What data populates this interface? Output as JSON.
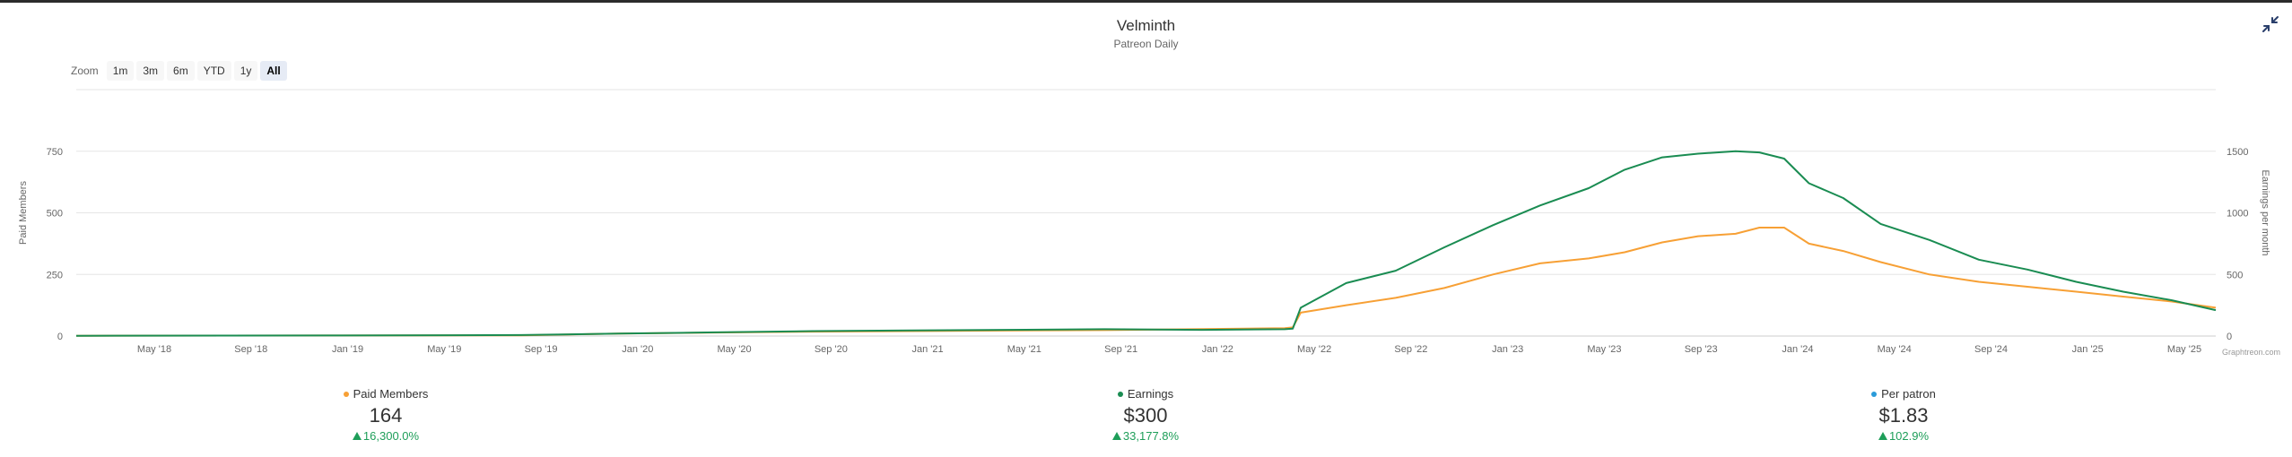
{
  "header": {
    "title": "Velminth",
    "subtitle": "Patreon Daily"
  },
  "zoom": {
    "label": "Zoom",
    "buttons": [
      "1m",
      "3m",
      "6m",
      "YTD",
      "1y",
      "All"
    ],
    "active": "All"
  },
  "icons": {
    "collapse": "collapse-arrows-icon"
  },
  "stats": [
    {
      "label": "Paid Members",
      "value": "164",
      "change": "16,300.0%",
      "color": "#f7a035"
    },
    {
      "label": "Earnings",
      "value": "$300",
      "change": "33,177.8%",
      "color": "#1a8c52"
    },
    {
      "label": "Per patron",
      "value": "$1.83",
      "change": "102.9%",
      "color": "#2b9bd9"
    }
  ],
  "chart_data": {
    "type": "line",
    "credit": "Graphtreon.com",
    "x_ticks": [
      "May '18",
      "Sep '18",
      "Jan '19",
      "May '19",
      "Sep '19",
      "Jan '20",
      "May '20",
      "Sep '20",
      "Jan '21",
      "May '21",
      "Sep '21",
      "Jan '22",
      "May '22",
      "Sep '22",
      "Jan '23",
      "May '23",
      "Sep '23",
      "Jan '24",
      "May '24",
      "Sep '24",
      "Jan '25",
      "May '25"
    ],
    "xlim": [
      "2018-02-20",
      "2025-06-25"
    ],
    "y_left": {
      "label": "Paid Members",
      "ticks": [
        0,
        250,
        500,
        750
      ],
      "range": [
        0,
        1000
      ]
    },
    "y_right": {
      "label": "Earnings per month",
      "ticks": [
        0,
        500,
        1000,
        1500
      ],
      "range": [
        0,
        2000
      ]
    },
    "gridlines": true,
    "series": [
      {
        "name": "Paid Members",
        "axis": "left",
        "color": "#f7a035",
        "points": [
          [
            "2018-02-20",
            1
          ],
          [
            "2019-01-01",
            2
          ],
          [
            "2019-09-01",
            3
          ],
          [
            "2020-01-01",
            10
          ],
          [
            "2020-05-01",
            14
          ],
          [
            "2020-09-01",
            18
          ],
          [
            "2021-01-01",
            20
          ],
          [
            "2021-05-01",
            22
          ],
          [
            "2021-09-01",
            24
          ],
          [
            "2022-01-01",
            28
          ],
          [
            "2022-04-15",
            32
          ],
          [
            "2022-04-25",
            35
          ],
          [
            "2022-05-05",
            95
          ],
          [
            "2022-07-01",
            125
          ],
          [
            "2022-09-01",
            155
          ],
          [
            "2022-11-01",
            195
          ],
          [
            "2023-01-01",
            250
          ],
          [
            "2023-03-01",
            295
          ],
          [
            "2023-05-01",
            315
          ],
          [
            "2023-06-15",
            340
          ],
          [
            "2023-08-01",
            380
          ],
          [
            "2023-09-15",
            405
          ],
          [
            "2023-11-01",
            415
          ],
          [
            "2023-12-01",
            440
          ],
          [
            "2024-01-01",
            440
          ],
          [
            "2024-02-01",
            375
          ],
          [
            "2024-03-15",
            345
          ],
          [
            "2024-05-01",
            300
          ],
          [
            "2024-07-01",
            250
          ],
          [
            "2024-09-01",
            220
          ],
          [
            "2024-11-01",
            200
          ],
          [
            "2025-01-01",
            180
          ],
          [
            "2025-03-01",
            160
          ],
          [
            "2025-05-01",
            140
          ],
          [
            "2025-06-25",
            115
          ]
        ]
      },
      {
        "name": "Earnings",
        "axis": "right",
        "color": "#1a8c52",
        "points": [
          [
            "2018-02-20",
            2
          ],
          [
            "2019-01-01",
            4
          ],
          [
            "2019-09-01",
            8
          ],
          [
            "2020-01-01",
            20
          ],
          [
            "2020-05-01",
            30
          ],
          [
            "2020-09-01",
            40
          ],
          [
            "2021-01-01",
            45
          ],
          [
            "2021-05-01",
            50
          ],
          [
            "2021-09-01",
            55
          ],
          [
            "2022-01-01",
            50
          ],
          [
            "2022-04-15",
            55
          ],
          [
            "2022-04-25",
            60
          ],
          [
            "2022-05-05",
            230
          ],
          [
            "2022-07-01",
            430
          ],
          [
            "2022-09-01",
            530
          ],
          [
            "2022-11-01",
            720
          ],
          [
            "2023-01-01",
            900
          ],
          [
            "2023-03-01",
            1060
          ],
          [
            "2023-05-01",
            1200
          ],
          [
            "2023-06-15",
            1350
          ],
          [
            "2023-08-01",
            1450
          ],
          [
            "2023-09-15",
            1480
          ],
          [
            "2023-11-01",
            1500
          ],
          [
            "2023-12-01",
            1490
          ],
          [
            "2024-01-01",
            1440
          ],
          [
            "2024-02-01",
            1240
          ],
          [
            "2024-03-15",
            1120
          ],
          [
            "2024-05-01",
            910
          ],
          [
            "2024-07-01",
            780
          ],
          [
            "2024-09-01",
            620
          ],
          [
            "2024-11-01",
            540
          ],
          [
            "2025-01-01",
            440
          ],
          [
            "2025-03-01",
            360
          ],
          [
            "2025-05-01",
            290
          ],
          [
            "2025-06-25",
            210
          ]
        ]
      }
    ]
  }
}
